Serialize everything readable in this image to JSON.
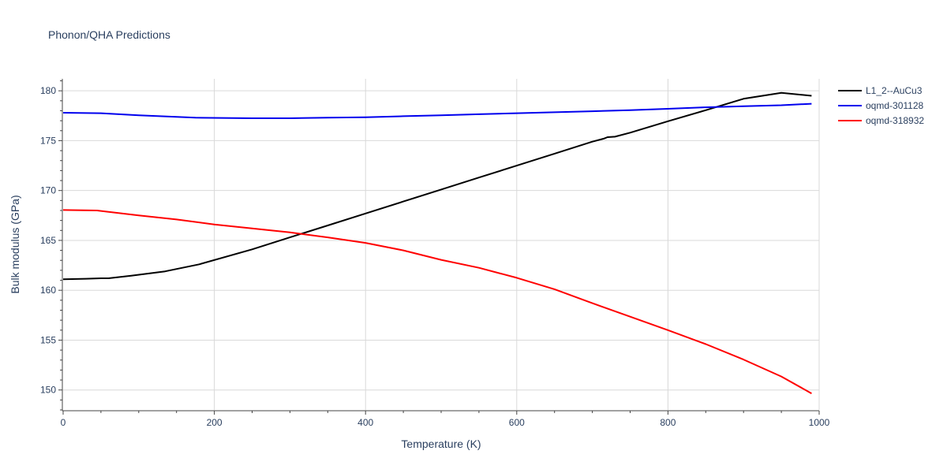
{
  "chart_data": {
    "type": "line",
    "title": "Phonon/QHA Predictions",
    "xlabel": "Temperature (K)",
    "ylabel": "Bulk modulus (GPa)",
    "xlim": [
      0,
      1000
    ],
    "ylim": [
      148,
      181.2
    ],
    "x_ticks": [
      0,
      200,
      400,
      600,
      800,
      1000
    ],
    "y_ticks": [
      150,
      155,
      160,
      165,
      170,
      175,
      180
    ],
    "grid": true,
    "legend_position": "top-right",
    "series": [
      {
        "name": "L1_2--AuCu3",
        "color": "#000000",
        "x": [
          0,
          30,
          50,
          60,
          90,
          135,
          180,
          250,
          300,
          350,
          400,
          450,
          500,
          550,
          600,
          650,
          700,
          715,
          720,
          730,
          750,
          800,
          850,
          900,
          950,
          990
        ],
        "y": [
          161.1,
          161.15,
          161.2,
          161.2,
          161.45,
          161.9,
          162.6,
          164.1,
          165.3,
          166.5,
          167.7,
          168.9,
          170.1,
          171.3,
          172.5,
          173.7,
          174.9,
          175.2,
          175.35,
          175.4,
          175.8,
          176.95,
          178.05,
          179.2,
          179.8,
          179.5
        ]
      },
      {
        "name": "oqmd-301128",
        "color": "#0000ee",
        "x": [
          0,
          50,
          100,
          175,
          250,
          300,
          350,
          400,
          450,
          500,
          550,
          600,
          650,
          700,
          750,
          800,
          850,
          900,
          950,
          990
        ],
        "y": [
          177.8,
          177.75,
          177.55,
          177.3,
          177.25,
          177.25,
          177.3,
          177.35,
          177.45,
          177.55,
          177.65,
          177.75,
          177.85,
          177.95,
          178.05,
          178.2,
          178.35,
          178.45,
          178.55,
          178.7
        ]
      },
      {
        "name": "oqmd-318932",
        "color": "#ff0000",
        "x": [
          0,
          45,
          100,
          150,
          200,
          250,
          300,
          350,
          400,
          450,
          500,
          550,
          600,
          650,
          700,
          750,
          800,
          850,
          900,
          950,
          990
        ],
        "y": [
          168.05,
          168.0,
          167.5,
          167.1,
          166.6,
          166.2,
          165.8,
          165.3,
          164.75,
          164.0,
          163.05,
          162.25,
          161.25,
          160.1,
          158.7,
          157.35,
          156.0,
          154.6,
          153.05,
          151.35,
          149.65
        ]
      }
    ]
  }
}
